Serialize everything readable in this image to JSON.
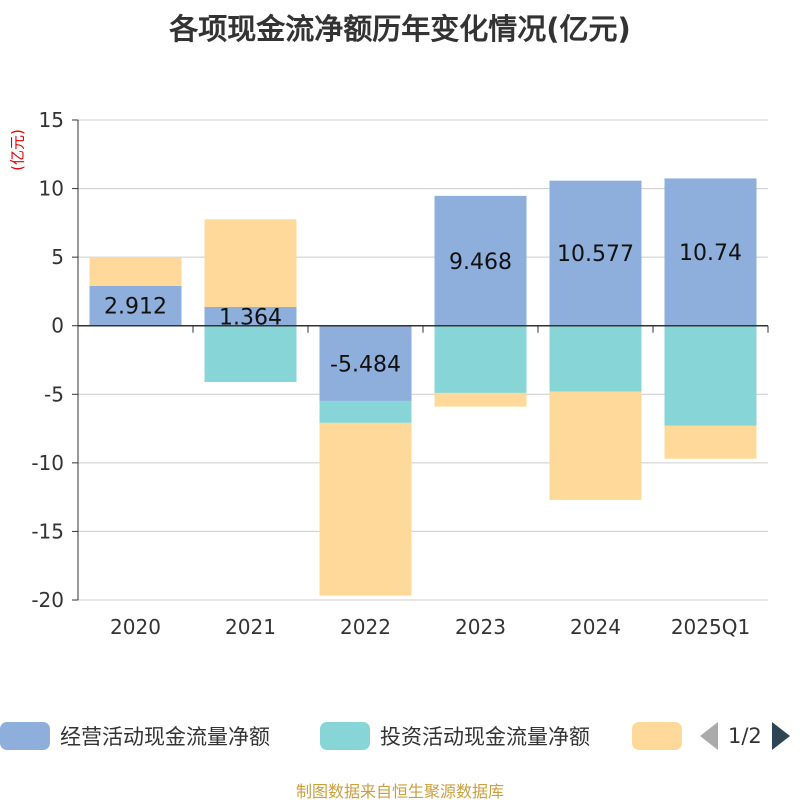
{
  "title": "各项现金流净额历年变化情况(亿元)",
  "unit": "(亿元)",
  "source": "制图数据来自恒生聚源数据库",
  "pager": "1/2",
  "chart_data": {
    "type": "bar",
    "stacked": true,
    "categories": [
      "2020",
      "2021",
      "2022",
      "2023",
      "2024",
      "2025Q1"
    ],
    "ylim": [
      -20,
      15
    ],
    "yticks": [
      15,
      10,
      5,
      0,
      -5,
      -10,
      -15,
      -20
    ],
    "ylabel": "(亿元)",
    "grid": true,
    "legend_position": "bottom",
    "series": [
      {
        "name": "经营活动现金流量净额",
        "color": "#8eaedc",
        "values": [
          2.912,
          1.364,
          -5.484,
          9.468,
          10.577,
          10.74
        ],
        "show_labels": true
      },
      {
        "name": "投资活动现金流量净额",
        "color": "#88d5d7",
        "values": [
          0,
          -4.1,
          -1.6,
          -4.9,
          -4.8,
          -7.3
        ],
        "show_labels": false
      },
      {
        "name": "",
        "color": "#ffd99a",
        "values": [
          2.1,
          6.4,
          -12.6,
          -1.0,
          -7.9,
          -2.4
        ],
        "show_labels": false
      }
    ]
  }
}
